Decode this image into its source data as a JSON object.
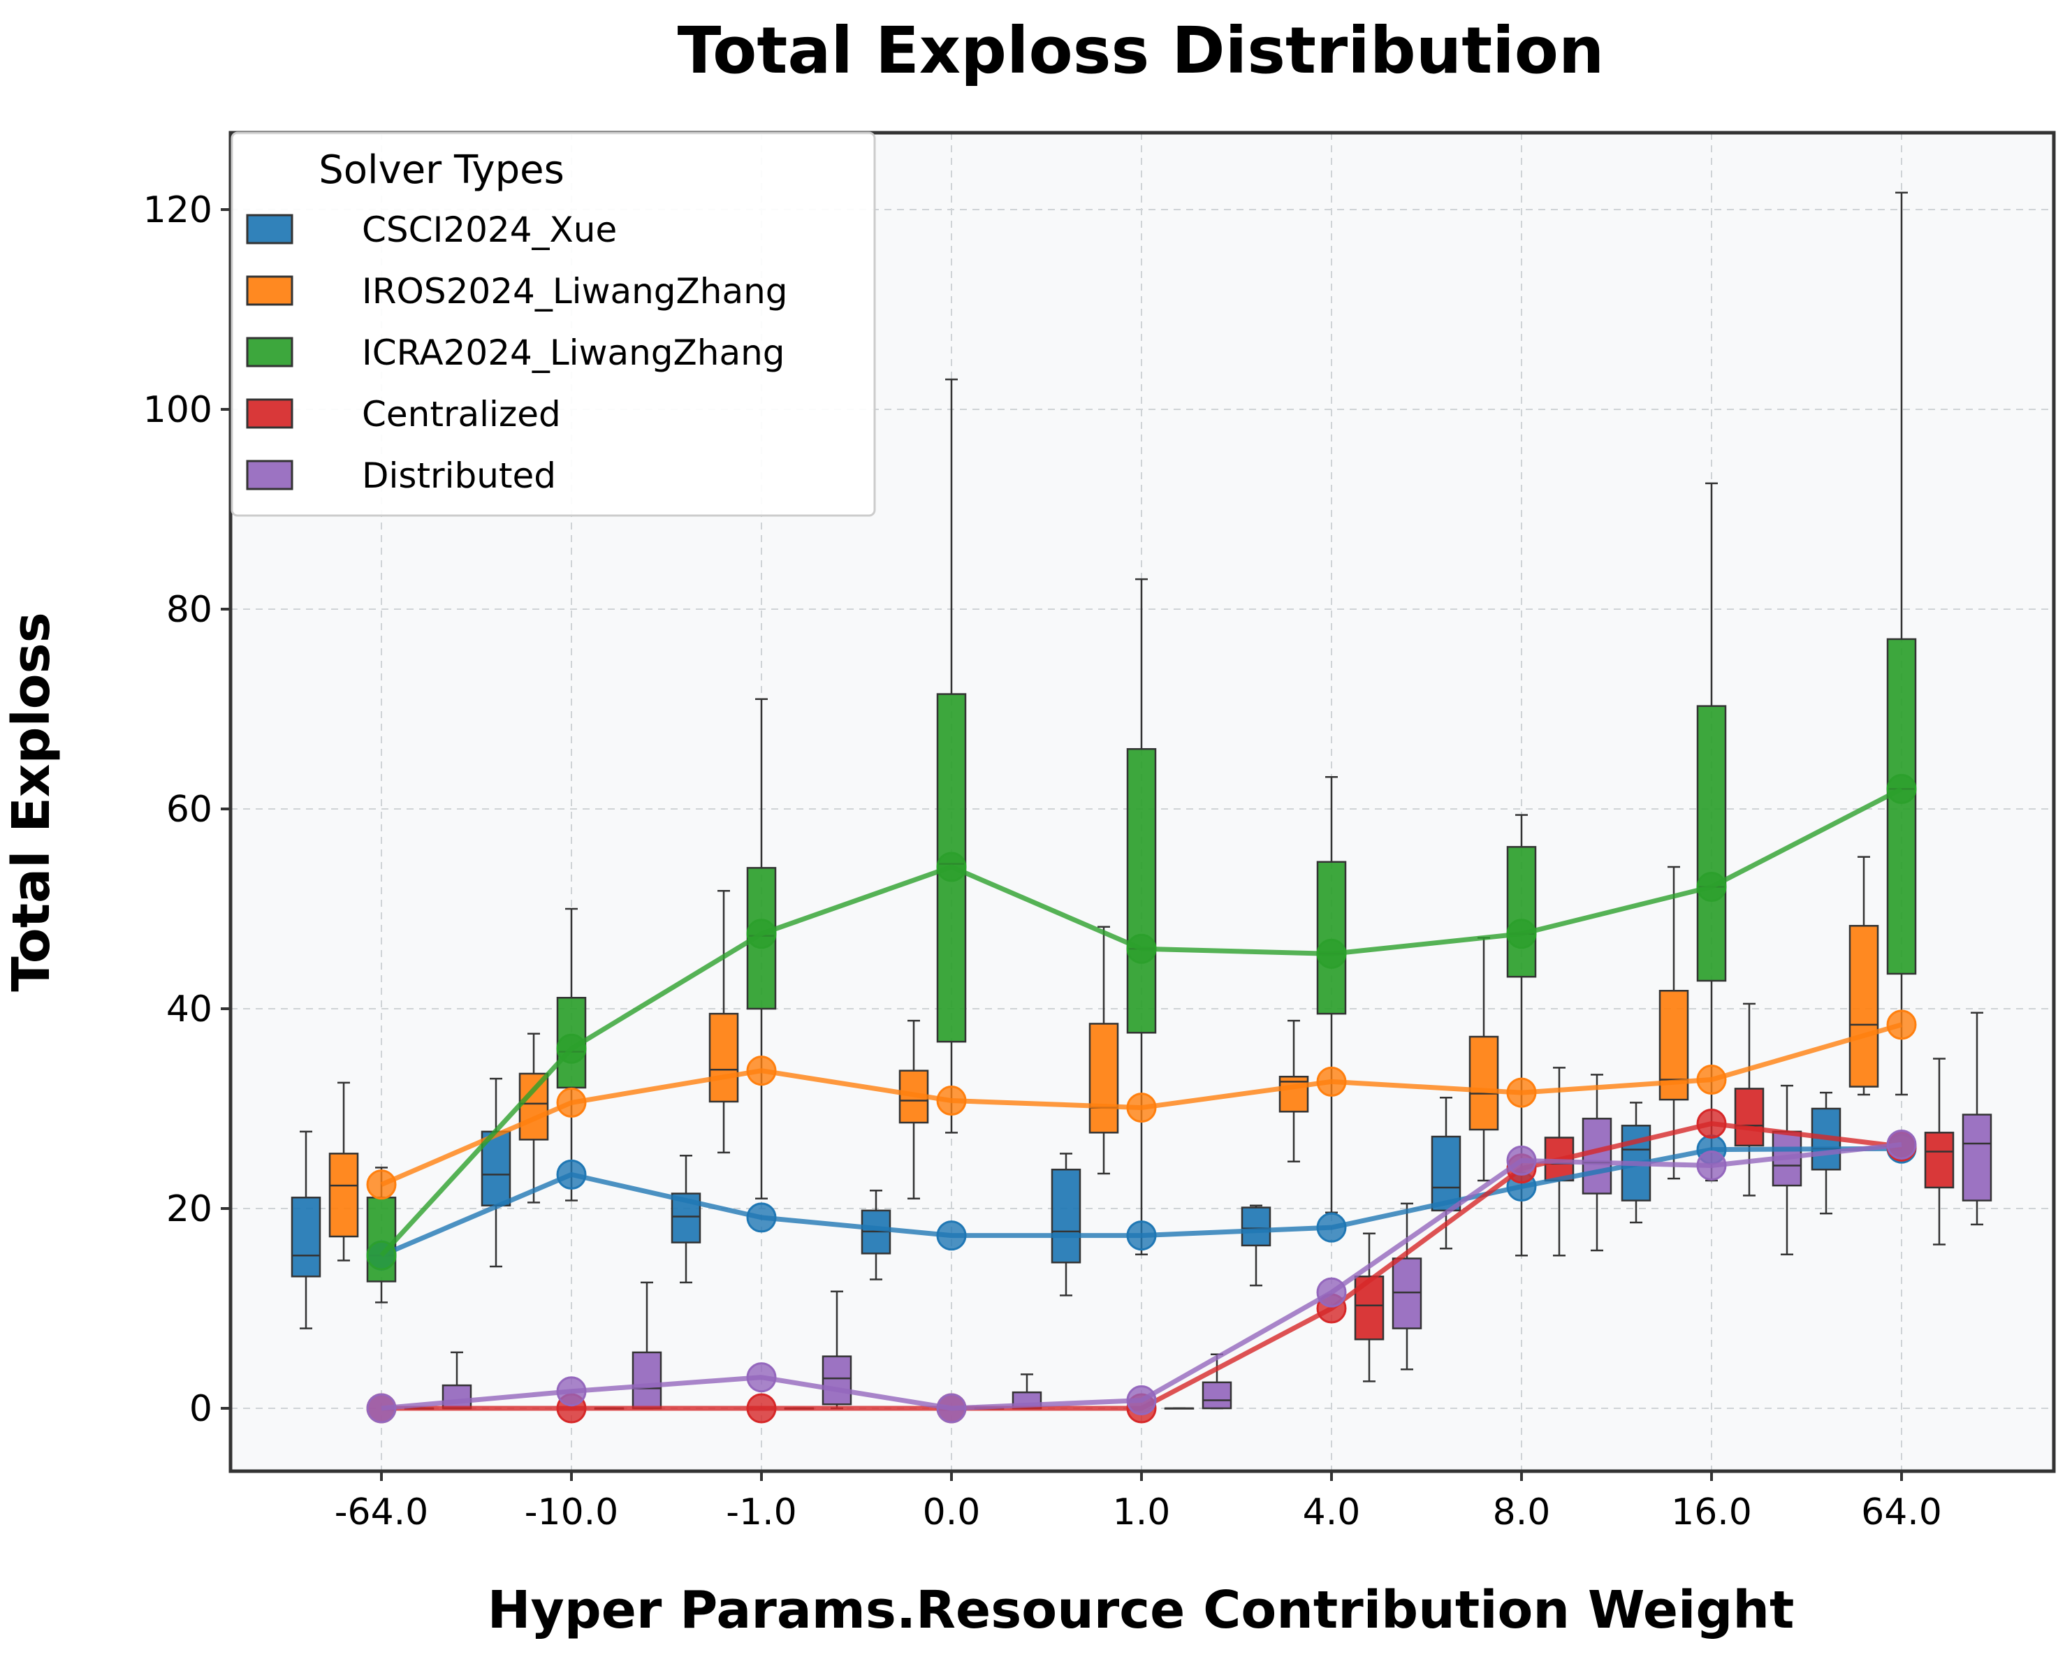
{
  "chart_data": {
    "type": "box",
    "title": "Total Exploss Distribution",
    "xlabel": "Hyper Params.Resource Contribution Weight",
    "ylabel": "Total Exploss",
    "categories": [
      "-64.0",
      "-10.0",
      "-1.0",
      "0.0",
      "1.0",
      "4.0",
      "8.0",
      "16.0",
      "64.0"
    ],
    "ylim": [
      -6,
      128
    ],
    "yticks": [
      0,
      20,
      40,
      60,
      80,
      100,
      120
    ],
    "grid": true,
    "legend": {
      "title": "Solver Types",
      "position": "top-left"
    },
    "series": [
      {
        "name": "CSCI2024_Xue",
        "color": "#1f77b4",
        "boxes": [
          {
            "whislo": 8,
            "q1": 13.2,
            "median": 15.3,
            "q3": 21.1,
            "whishi": 27.7
          },
          {
            "whislo": 14.2,
            "q1": 20.3,
            "median": 23.4,
            "q3": 27.7,
            "whishi": 33
          },
          {
            "whislo": 12.6,
            "q1": 16.6,
            "median": 19.2,
            "q3": 21.5,
            "whishi": 25.3
          },
          {
            "whislo": 12.9,
            "q1": 15.5,
            "median": 17.7,
            "q3": 19.8,
            "whishi": 21.8
          },
          {
            "whislo": 11.3,
            "q1": 14.6,
            "median": 17.7,
            "q3": 23.9,
            "whishi": 25.5
          },
          {
            "whislo": 12.3,
            "q1": 16.3,
            "median": 18,
            "q3": 20.1,
            "whishi": 20.3
          },
          {
            "whislo": 16,
            "q1": 19.8,
            "median": 22.1,
            "q3": 27.2,
            "whishi": 31.1
          },
          {
            "whislo": 18.6,
            "q1": 20.8,
            "median": 25.9,
            "q3": 28.3,
            "whishi": 30.6
          },
          {
            "whislo": 19.5,
            "q1": 23.9,
            "median": 26,
            "q3": 30,
            "whishi": 31.6
          }
        ],
        "means": [
          15.3,
          23.4,
          19.1,
          17.3,
          17.3,
          18.1,
          22.2,
          25.9,
          26.0
        ]
      },
      {
        "name": "IROS2024_LiwangZhang",
        "color": "#ff7f0e",
        "boxes": [
          {
            "whislo": 14.8,
            "q1": 17.2,
            "median": 22.3,
            "q3": 25.5,
            "whishi": 32.6
          },
          {
            "whislo": 20.6,
            "q1": 26.9,
            "median": 30.5,
            "q3": 33.5,
            "whishi": 37.5
          },
          {
            "whislo": 25.6,
            "q1": 30.7,
            "median": 33.9,
            "q3": 39.5,
            "whishi": 51.8
          },
          {
            "whislo": 21,
            "q1": 28.6,
            "median": 30.8,
            "q3": 33.8,
            "whishi": 38.8
          },
          {
            "whislo": 23.5,
            "q1": 27.6,
            "median": 30.1,
            "q3": 38.5,
            "whishi": 48.2
          },
          {
            "whislo": 24.7,
            "q1": 29.7,
            "median": 32.7,
            "q3": 33.2,
            "whishi": 38.8
          },
          {
            "whislo": 22.8,
            "q1": 27.9,
            "median": 31.5,
            "q3": 37.2,
            "whishi": 47.1
          },
          {
            "whislo": 23,
            "q1": 30.9,
            "median": 32.9,
            "q3": 41.8,
            "whishi": 54.2
          },
          {
            "whislo": 31.4,
            "q1": 32.2,
            "median": 38.4,
            "q3": 48.3,
            "whishi": 55.2
          }
        ],
        "means": [
          22.4,
          30.6,
          33.8,
          30.8,
          30.1,
          32.7,
          31.6,
          32.9,
          38.4
        ]
      },
      {
        "name": "ICRA2024_LiwangZhang",
        "color": "#2ca02c",
        "boxes": [
          {
            "whislo": 10.6,
            "q1": 12.7,
            "median": 15.3,
            "q3": 21.1,
            "whishi": 24.1
          },
          {
            "whislo": 20.8,
            "q1": 32.1,
            "median": 35.7,
            "q3": 41.1,
            "whishi": 50
          },
          {
            "whislo": 21,
            "q1": 40,
            "median": 47.3,
            "q3": 54.1,
            "whishi": 71
          },
          {
            "whislo": 27.6,
            "q1": 36.7,
            "median": 54.5,
            "q3": 71.5,
            "whishi": 103
          },
          {
            "whislo": 15.4,
            "q1": 37.6,
            "median": 46,
            "q3": 66,
            "whishi": 83
          },
          {
            "whislo": 19.6,
            "q1": 39.5,
            "median": 45.5,
            "q3": 54.7,
            "whishi": 63.2
          },
          {
            "whislo": 15.3,
            "q1": 43.2,
            "median": 47.5,
            "q3": 56.2,
            "whishi": 59.4
          },
          {
            "whislo": 22.8,
            "q1": 42.8,
            "median": 52.2,
            "q3": 70.3,
            "whishi": 92.6
          },
          {
            "whislo": 31.4,
            "q1": 43.5,
            "median": 62,
            "q3": 77,
            "whishi": 121.7
          }
        ],
        "means": [
          15.3,
          36.0,
          47.5,
          54.2,
          46.0,
          45.5,
          47.5,
          52.2,
          62.0
        ]
      },
      {
        "name": "Centralized",
        "color": "#d62728",
        "boxes": [
          {
            "whislo": 0,
            "q1": 0,
            "median": 0,
            "q3": 0,
            "whishi": 0
          },
          {
            "whislo": 0,
            "q1": 0,
            "median": 0,
            "q3": 0,
            "whishi": 0
          },
          {
            "whislo": 0,
            "q1": 0,
            "median": 0,
            "q3": 0,
            "whishi": 0
          },
          {
            "whislo": 0,
            "q1": 0,
            "median": 0,
            "q3": 0,
            "whishi": 0
          },
          {
            "whislo": 0,
            "q1": 0,
            "median": 0,
            "q3": 0,
            "whishi": 0
          },
          {
            "whislo": 2.7,
            "q1": 6.9,
            "median": 10.3,
            "q3": 13.2,
            "whishi": 17.5
          },
          {
            "whislo": 15.3,
            "q1": 22.8,
            "median": 24.5,
            "q3": 27.1,
            "whishi": 34.1
          },
          {
            "whislo": 21.3,
            "q1": 26.3,
            "median": 28.3,
            "q3": 32,
            "whishi": 40.5
          },
          {
            "whislo": 16.4,
            "q1": 22.1,
            "median": 25.7,
            "q3": 27.6,
            "whishi": 35
          }
        ],
        "means": [
          0,
          0,
          0,
          0,
          0,
          10.0,
          24.0,
          28.5,
          26.2
        ]
      },
      {
        "name": "Distributed",
        "color": "#9467bd",
        "boxes": [
          {
            "whislo": 0,
            "q1": 0,
            "median": 0,
            "q3": 2.3,
            "whishi": 5.6
          },
          {
            "whislo": 0,
            "q1": 0,
            "median": 2,
            "q3": 5.6,
            "whishi": 12.6
          },
          {
            "whislo": 0,
            "q1": 0.4,
            "median": 3,
            "q3": 5.2,
            "whishi": 11.7
          },
          {
            "whislo": 0,
            "q1": 0,
            "median": 0,
            "q3": 1.6,
            "whishi": 3.4
          },
          {
            "whislo": 0,
            "q1": 0,
            "median": 0.8,
            "q3": 2.6,
            "whishi": 5.4
          },
          {
            "whislo": 3.9,
            "q1": 8,
            "median": 11.6,
            "q3": 15,
            "whishi": 20.5
          },
          {
            "whislo": 15.8,
            "q1": 21.5,
            "median": 24.6,
            "q3": 29,
            "whishi": 33.4
          },
          {
            "whislo": 15.4,
            "q1": 22.3,
            "median": 24.3,
            "q3": 27.7,
            "whishi": 32.3
          },
          {
            "whislo": 18.4,
            "q1": 20.8,
            "median": 26.5,
            "q3": 29.4,
            "whishi": 39.6
          }
        ],
        "means": [
          0,
          1.7,
          3.1,
          0,
          0.8,
          11.6,
          24.8,
          24.3,
          26.4
        ]
      }
    ]
  }
}
